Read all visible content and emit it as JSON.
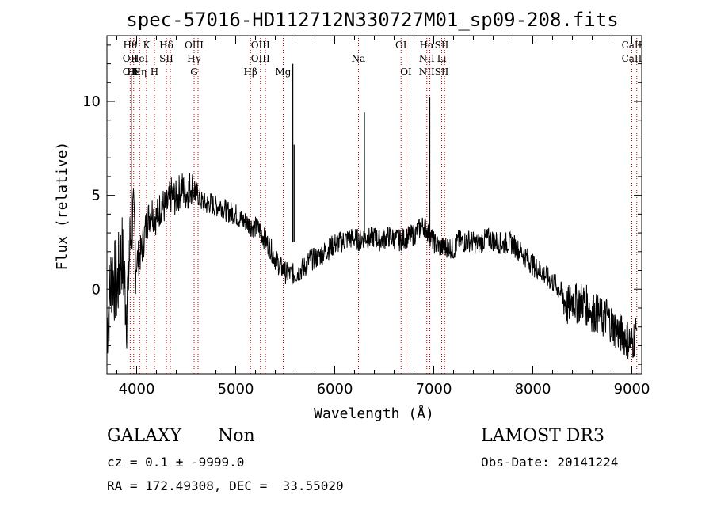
{
  "chart_data": {
    "type": "line",
    "title": "spec-57016-HD112712N330727M01_sp09-208.fits",
    "xlabel": "Wavelength (Å)",
    "ylabel": "Flux (relative)",
    "xlim": [
      3700,
      9100
    ],
    "ylim": [
      -4.5,
      13.5
    ],
    "xticks": [
      4000,
      5000,
      6000,
      7000,
      8000,
      9000
    ],
    "yticks": [
      0,
      5,
      10
    ],
    "series": [
      {
        "name": "spectrum",
        "color": "#000000",
        "x": [
          3700,
          3750,
          3800,
          3850,
          3900,
          3950,
          4000,
          4050,
          4100,
          4150,
          4200,
          4250,
          4300,
          4350,
          4400,
          4450,
          4500,
          4550,
          4600,
          4650,
          4700,
          4750,
          4800,
          4850,
          4900,
          4950,
          5000,
          5050,
          5100,
          5150,
          5200,
          5250,
          5300,
          5350,
          5400,
          5450,
          5500,
          5550,
          5600,
          5650,
          5700,
          5750,
          5800,
          5850,
          5900,
          5950,
          6000,
          6050,
          6100,
          6150,
          6200,
          6250,
          6300,
          6350,
          6400,
          6450,
          6500,
          6550,
          6600,
          6650,
          6700,
          6750,
          6800,
          6850,
          6900,
          6950,
          7000,
          7050,
          7100,
          7150,
          7200,
          7250,
          7300,
          7350,
          7400,
          7450,
          7500,
          7550,
          7600,
          7650,
          7700,
          7750,
          7800,
          7850,
          7900,
          7950,
          8000,
          8050,
          8100,
          8150,
          8200,
          8250,
          8300,
          8350,
          8400,
          8450,
          8500,
          8550,
          8600,
          8650,
          8700,
          8750,
          8800,
          8850,
          8900,
          8950,
          9000,
          9050
        ],
        "y": [
          -2,
          1,
          0,
          2,
          -1,
          4,
          1.5,
          2,
          3.5,
          4.2,
          3.8,
          4.5,
          4.3,
          5,
          4.8,
          5.4,
          5.1,
          5.5,
          5.2,
          4.7,
          4.5,
          4.6,
          4.4,
          4.5,
          4.2,
          4.1,
          4.0,
          3.7,
          3.6,
          3.4,
          3.3,
          3.1,
          2.6,
          2.2,
          1.6,
          1.2,
          0.9,
          0.8,
          0.8,
          1.0,
          1.2,
          1.6,
          1.6,
          1.8,
          2.0,
          2.2,
          2.4,
          2.5,
          2.6,
          2.7,
          2.7,
          2.6,
          2.8,
          2.7,
          2.8,
          2.6,
          2.7,
          2.8,
          2.7,
          2.6,
          2.7,
          2.8,
          2.9,
          3.2,
          3.4,
          3.0,
          2.5,
          2.3,
          2.2,
          2.3,
          2.1,
          2.6,
          2.5,
          2.6,
          2.5,
          2.4,
          2.6,
          2.7,
          2.6,
          2.5,
          2.4,
          2.5,
          2.4,
          2.1,
          1.9,
          1.6,
          1.3,
          1.1,
          0.9,
          0.6,
          0.4,
          0.1,
          -0.3,
          -1.0,
          -0.5,
          -0.8,
          -0.6,
          -0.9,
          -1.2,
          -1.3,
          -1.6,
          -1.4,
          -1.9,
          -2.2,
          -2.4,
          -2.6,
          -2.9,
          -2.2
        ],
        "spikes": [
          {
            "x": 3950,
            "y": 11.5
          },
          {
            "x": 5577,
            "y": 12.0
          },
          {
            "x": 6300,
            "y": 9.4
          },
          {
            "x": 6960,
            "y": 10.2
          },
          {
            "x": 5590,
            "y": 7.7
          }
        ]
      }
    ],
    "line_markers": [
      {
        "x": 3935,
        "top": "Hθ",
        "mid": "OII",
        "low": "OII"
      },
      {
        "x": 3970,
        "top": "",
        "mid": "",
        "low": "Hε"
      },
      {
        "x": 4030,
        "top": "",
        "mid": "HeI",
        "low": "Hη"
      },
      {
        "x": 4100,
        "top": "K",
        "mid": "",
        "low": ""
      },
      {
        "x": 4180,
        "top": "",
        "mid": "",
        "low": "H"
      },
      {
        "x": 4300,
        "top": "Hδ",
        "mid": "SII",
        "low": ""
      },
      {
        "x": 4340,
        "top": "",
        "mid": "",
        "low": ""
      },
      {
        "x": 4580,
        "top": "OIII",
        "mid": "Hγ",
        "low": "G"
      },
      {
        "x": 4620,
        "top": "",
        "mid": "",
        "low": ""
      },
      {
        "x": 5150,
        "top": "",
        "mid": "",
        "low": "Hβ"
      },
      {
        "x": 5250,
        "top": "OIII",
        "mid": "OIII",
        "low": ""
      },
      {
        "x": 5300,
        "top": "",
        "mid": "",
        "low": ""
      },
      {
        "x": 5480,
        "top": "",
        "mid": "",
        "low": "Mg"
      },
      {
        "x": 6240,
        "top": "",
        "mid": "Na",
        "low": ""
      },
      {
        "x": 6670,
        "top": "OI",
        "mid": "",
        "low": ""
      },
      {
        "x": 6720,
        "top": "",
        "mid": "",
        "low": "OI"
      },
      {
        "x": 6930,
        "top": "Hα",
        "mid": "NII",
        "low": "NII"
      },
      {
        "x": 6960,
        "top": "",
        "mid": "",
        "low": ""
      },
      {
        "x": 7080,
        "top": "SII",
        "mid": "Li",
        "low": "SII"
      },
      {
        "x": 7110,
        "top": "",
        "mid": "",
        "low": ""
      },
      {
        "x": 9000,
        "top": "CaII",
        "mid": "CaII",
        "low": ""
      },
      {
        "x": 9050,
        "top": "",
        "mid": "",
        "low": ""
      }
    ]
  },
  "info": {
    "class": "GALAXY",
    "subclass": "Non",
    "survey": "LAMOST DR3",
    "cz": "cz = 0.1 ± -9999.0",
    "obs_date": "Obs-Date: 20141224",
    "radec": "RA = 172.49308, DEC =  33.55020"
  },
  "colors": {
    "marker": "#cc0000",
    "axes": "#000000"
  }
}
